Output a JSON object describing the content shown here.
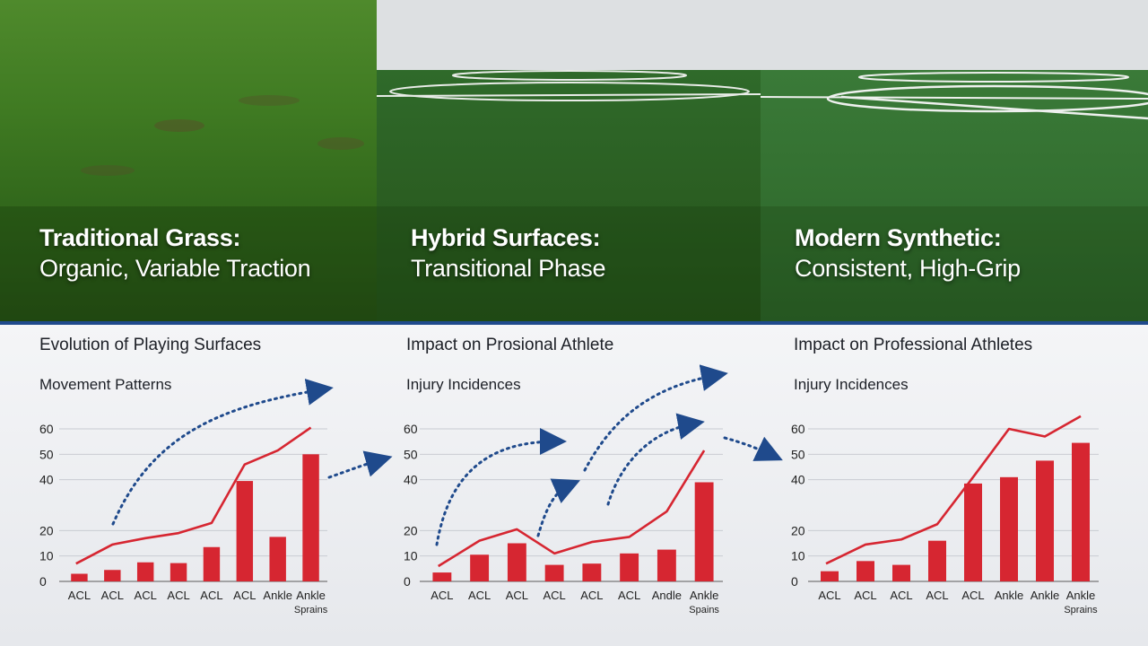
{
  "hero": [
    {
      "title": "Traditional Grass:",
      "subtitle": "Organic, Variable Traction"
    },
    {
      "title": "Hybrid Surfaces:",
      "subtitle": "Transitional Phase"
    },
    {
      "title": "Modern Synthetic:",
      "subtitle": "Consistent, High-Grip"
    }
  ],
  "colors": {
    "bar": "#d62631",
    "line": "#d62631",
    "arrow": "#1f4a8c",
    "divider": "#1f4a8c"
  },
  "chart_data": [
    {
      "type": "bar",
      "title": "Evolution of Playing Surfaces",
      "subtitle": "Movement Patterns",
      "categories": [
        "ACL",
        "ACL",
        "ACL",
        "ACL",
        "ACL",
        "ACL",
        "Ankle",
        "Ankle Sprains"
      ],
      "yticks": [
        "0",
        "10",
        "20",
        "40",
        "50",
        "60"
      ],
      "ylim": [
        0,
        60
      ],
      "series": [
        {
          "type": "bar",
          "values": [
            3,
            4.5,
            7.5,
            7.2,
            13.5,
            39.5,
            17.5,
            50
          ]
        },
        {
          "type": "line",
          "values": [
            7,
            14.5,
            17,
            19,
            23,
            46,
            51.5,
            60.5
          ]
        }
      ]
    },
    {
      "type": "bar",
      "title": "Impact on Prosional Athlete",
      "subtitle": "Injury Incidences",
      "categories": [
        "ACL",
        "ACL",
        "ACL",
        "ACL",
        "ACL",
        "ACL",
        "Andle",
        "Ankle Spains"
      ],
      "yticks": [
        "0",
        "10",
        "20",
        "40",
        "50",
        "60"
      ],
      "ylim": [
        0,
        60
      ],
      "series": [
        {
          "type": "bar",
          "values": [
            3.5,
            10.5,
            15,
            6.5,
            7,
            11,
            12.5,
            39
          ]
        },
        {
          "type": "line",
          "values": [
            6,
            16,
            20.5,
            11,
            15.5,
            17.5,
            27.5,
            51.5
          ]
        }
      ]
    },
    {
      "type": "bar",
      "title": "Impact on Professional Athletes",
      "subtitle": "Injury Incidences",
      "categories": [
        "ACL",
        "ACL",
        "ACL",
        "ACL",
        "ACL",
        "Ankle",
        "Ankle",
        "Ankle Sprains"
      ],
      "yticks": [
        "0",
        "10",
        "20",
        "40",
        "50",
        "60"
      ],
      "ylim": [
        0,
        60
      ],
      "series": [
        {
          "type": "bar",
          "values": [
            4,
            8,
            6.5,
            16,
            38.5,
            41,
            47.5,
            54.5
          ]
        },
        {
          "type": "line",
          "values": [
            7,
            14.5,
            16.5,
            22.5,
            41,
            60,
            57,
            65
          ]
        }
      ]
    }
  ]
}
